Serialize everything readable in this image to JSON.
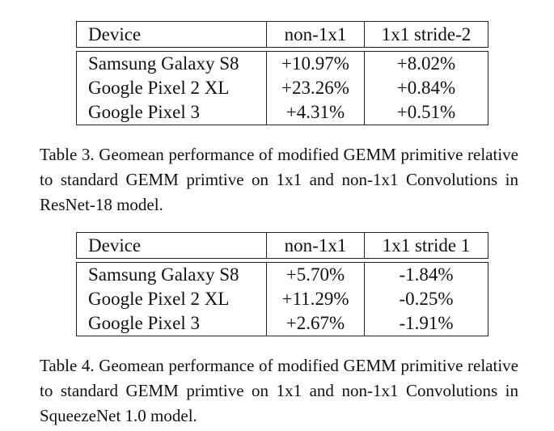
{
  "tables": [
    {
      "headers": [
        "Device",
        "non-1x1",
        "1x1 stride-2"
      ],
      "rows": [
        [
          "Samsung Galaxy S8",
          "+10.97%",
          "+8.02%"
        ],
        [
          "Google Pixel 2 XL",
          "+23.26%",
          "+0.84%"
        ],
        [
          "Google Pixel 3",
          "+4.31%",
          "+0.51%"
        ]
      ],
      "caption": "Table 3. Geomean performance of modified GEMM primitive relative to standard GEMM primtive on 1x1 and non-1x1 Convolutions in ResNet-18 model."
    },
    {
      "headers": [
        "Device",
        "non-1x1",
        "1x1 stride 1"
      ],
      "rows": [
        [
          "Samsung Galaxy S8",
          "+5.70%",
          "-1.84%"
        ],
        [
          "Google Pixel 2 XL",
          "+11.29%",
          "-0.25%"
        ],
        [
          "Google Pixel 3",
          "+2.67%",
          "-1.91%"
        ]
      ],
      "caption": "Table 4. Geomean performance of modified GEMM primitive relative to standard GEMM primtive on 1x1 and non-1x1 Convolutions in SqueezeNet 1.0 model."
    }
  ]
}
